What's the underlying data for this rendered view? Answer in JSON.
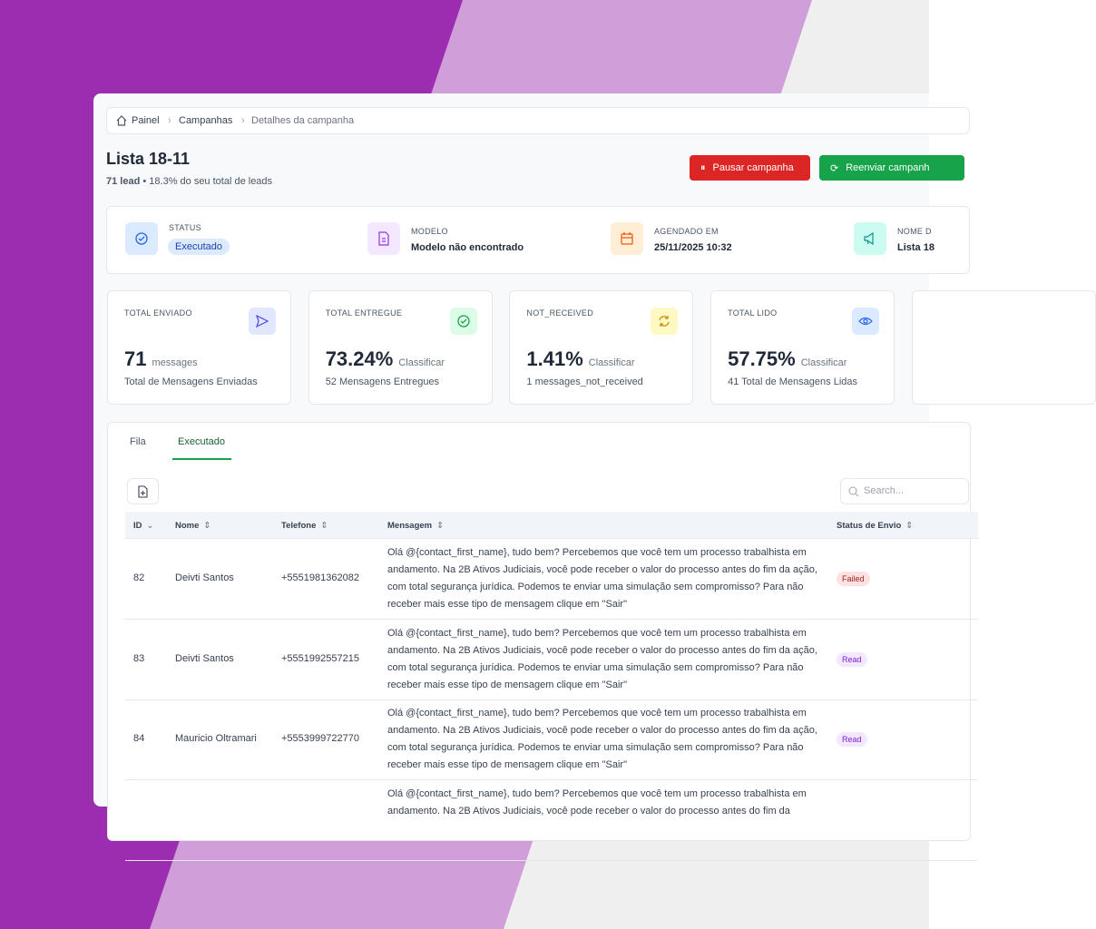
{
  "breadcrumb": [
    "Painel",
    "Campanhas",
    "Detalhes da campanha"
  ],
  "header": {
    "title": "Lista 18-11",
    "leads": "71 lead",
    "subtitle": "18.3% do seu total de leads",
    "buttons": [
      "Pausar campanha",
      "Reenviar campanh"
    ]
  },
  "info": [
    {
      "label": "STATUS",
      "value": "Executado"
    },
    {
      "label": "MODELO",
      "value": "Modelo não encontrado"
    },
    {
      "label": "AGENDADO EM",
      "value": "25/11/2025 10:32"
    },
    {
      "label": "NOME D",
      "value": "Lista 18"
    }
  ],
  "stats": [
    {
      "label": "TOTAL ENVIADO",
      "value": "71",
      "unit": "messages",
      "description": "Total de Mensagens Enviadas"
    },
    {
      "label": "TOTAL ENTREGUE",
      "value": "73.24%",
      "unit": "Classificar",
      "description": "52 Mensagens Entregues"
    },
    {
      "label": "NOT_RECEIVED",
      "value": "1.41%",
      "unit": "Classificar",
      "description": "1 messages_not_received"
    },
    {
      "label": "TOTAL LIDO",
      "value": "57.75%",
      "unit": "Classificar",
      "description": "41 Total de Mensagens Lidas"
    }
  ],
  "tabs": [
    "Fila",
    "Executado"
  ],
  "search_placeholder": "Search...",
  "table": {
    "columns": [
      "ID",
      "Nome",
      "Telefone",
      "Mensagem",
      "Status de Envio"
    ],
    "rows": [
      {
        "id": "82",
        "name": "Deivti Santos",
        "phone": "+5551981362082",
        "message": "Olá @{contact_first_name}, tudo bem? Percebemos que você tem um processo trabalhista em andamento. Na 2B Ativos Judiciais, você pode receber o valor do processo antes do fim da ação, com total segurança jurídica. Podemos te enviar uma simulação sem compromisso? Para não receber mais esse tipo de mensagem clique em \"Sair\"",
        "status": "Failed"
      },
      {
        "id": "83",
        "name": "Deivti Santos",
        "phone": "+5551992557215",
        "message": "Olá @{contact_first_name}, tudo bem? Percebemos que você tem um processo trabalhista em andamento. Na 2B Ativos Judiciais, você pode receber o valor do processo antes do fim da ação, com total segurança jurídica. Podemos te enviar uma simulação sem compromisso? Para não receber mais esse tipo de mensagem clique em \"Sair\"",
        "status": "Read"
      },
      {
        "id": "84",
        "name": "Mauricio Oltramari",
        "phone": "+5553999722770",
        "message": "Olá @{contact_first_name}, tudo bem? Percebemos que você tem um processo trabalhista em andamento. Na 2B Ativos Judiciais, você pode receber o valor do processo antes do fim da ação, com total segurança jurídica. Podemos te enviar uma simulação sem compromisso? Para não receber mais esse tipo de mensagem clique em \"Sair\"",
        "status": "Read"
      },
      {
        "message": "Olá @{contact_first_name}, tudo bem? Percebemos que você tem um processo trabalhista em andamento. Na 2B Ativos Judiciais, você pode receber o valor do processo antes do fim da"
      }
    ]
  }
}
